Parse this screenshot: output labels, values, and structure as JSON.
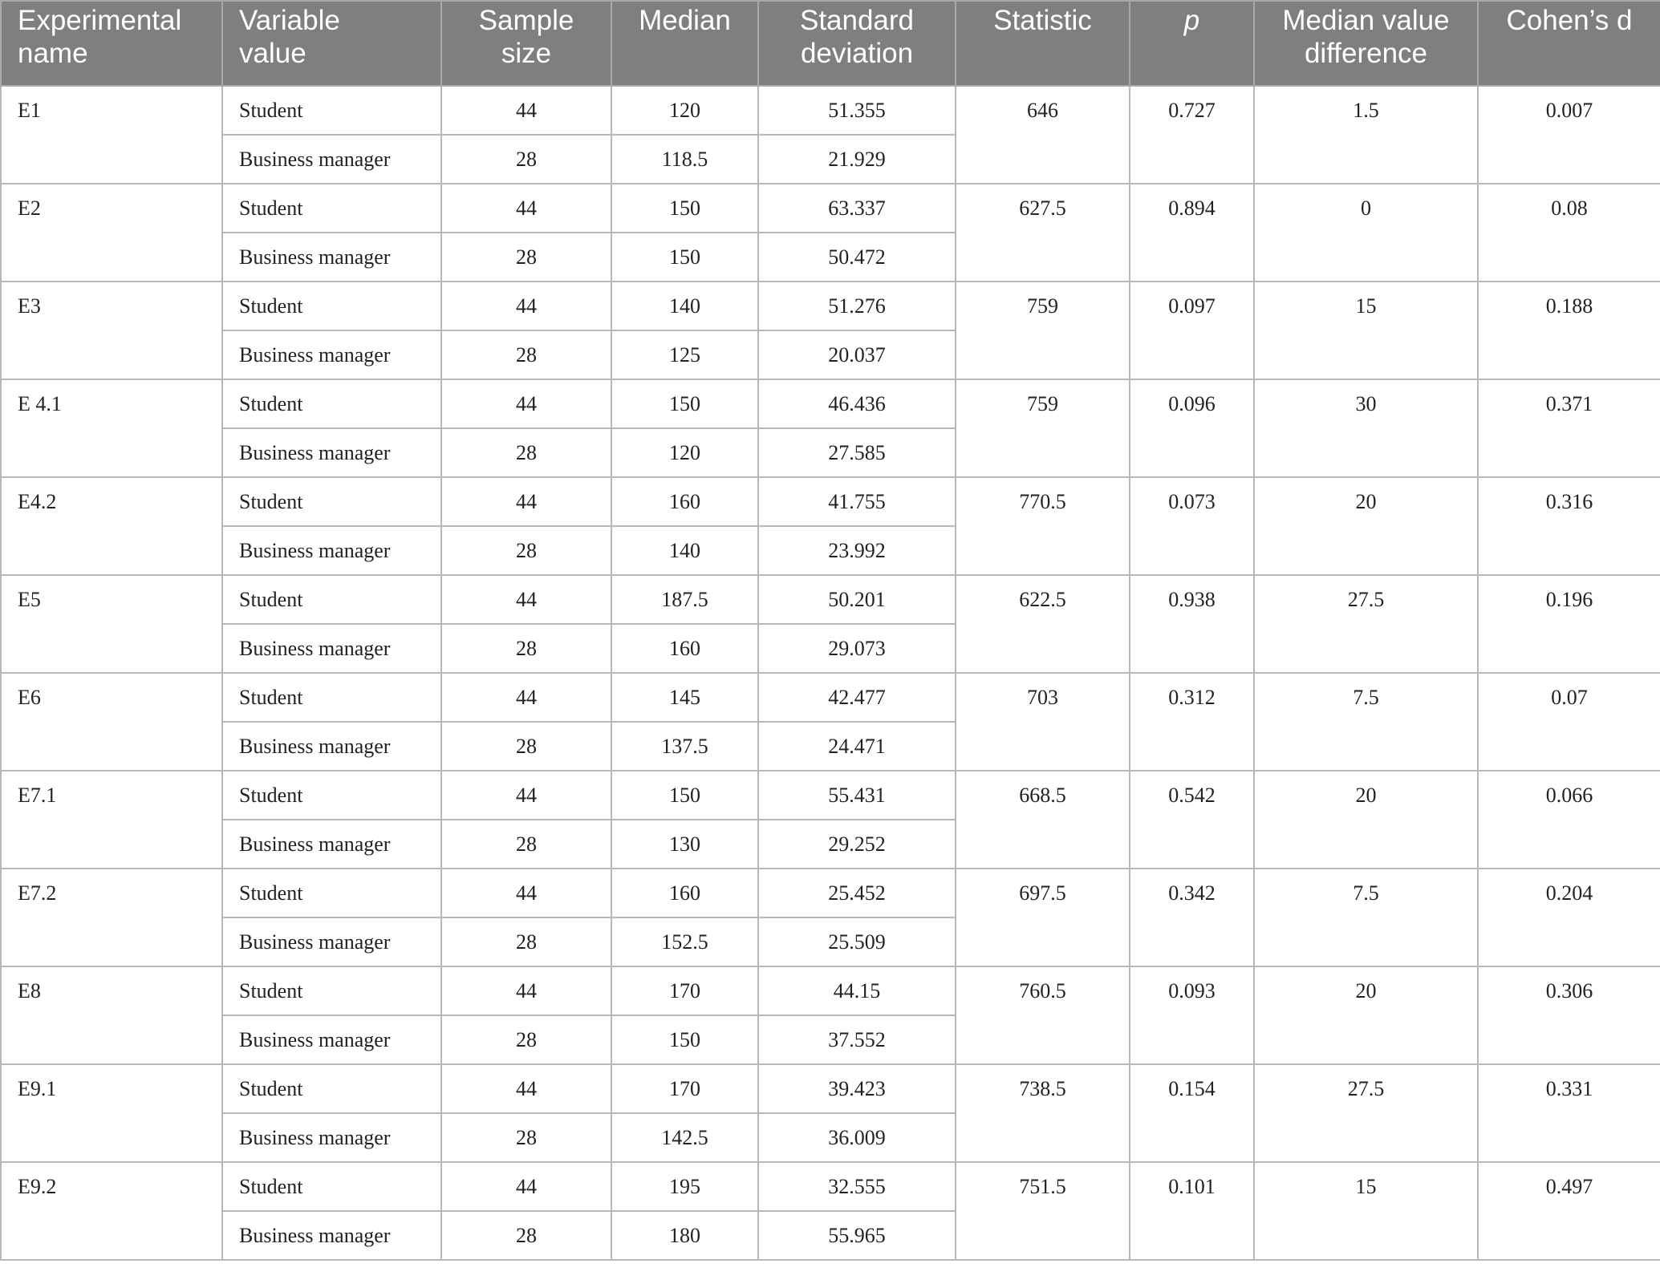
{
  "table": {
    "headers": [
      [
        "Experimental",
        "name"
      ],
      [
        "Variable",
        "value"
      ],
      [
        "Sample",
        "size"
      ],
      [
        "Median"
      ],
      [
        "Standard",
        "deviation"
      ],
      [
        "Statistic"
      ],
      [
        "p"
      ],
      [
        "Median value",
        "difference"
      ],
      [
        "Cohen’s d"
      ]
    ],
    "groups": [
      {
        "name": "E1",
        "statistic": "646",
        "p": "0.727",
        "median_diff": "1.5",
        "cohens_d": "0.007",
        "rows": [
          {
            "variable": "Student",
            "sample_size": "44",
            "median": "120",
            "sd": "51.355"
          },
          {
            "variable": "Business manager",
            "sample_size": "28",
            "median": "118.5",
            "sd": "21.929"
          }
        ]
      },
      {
        "name": "E2",
        "statistic": "627.5",
        "p": "0.894",
        "median_diff": "0",
        "cohens_d": "0.08",
        "rows": [
          {
            "variable": "Student",
            "sample_size": "44",
            "median": "150",
            "sd": "63.337"
          },
          {
            "variable": "Business manager",
            "sample_size": "28",
            "median": "150",
            "sd": "50.472"
          }
        ]
      },
      {
        "name": "E3",
        "statistic": "759",
        "p": "0.097",
        "median_diff": "15",
        "cohens_d": "0.188",
        "rows": [
          {
            "variable": "Student",
            "sample_size": "44",
            "median": "140",
            "sd": "51.276"
          },
          {
            "variable": "Business manager",
            "sample_size": "28",
            "median": "125",
            "sd": "20.037"
          }
        ]
      },
      {
        "name": "E 4.1",
        "statistic": "759",
        "p": "0.096",
        "median_diff": "30",
        "cohens_d": "0.371",
        "rows": [
          {
            "variable": "Student",
            "sample_size": "44",
            "median": "150",
            "sd": "46.436"
          },
          {
            "variable": "Business manager",
            "sample_size": "28",
            "median": "120",
            "sd": "27.585"
          }
        ]
      },
      {
        "name": "E4.2",
        "statistic": "770.5",
        "p": "0.073",
        "median_diff": "20",
        "cohens_d": "0.316",
        "rows": [
          {
            "variable": "Student",
            "sample_size": "44",
            "median": "160",
            "sd": "41.755"
          },
          {
            "variable": "Business manager",
            "sample_size": "28",
            "median": "140",
            "sd": "23.992"
          }
        ]
      },
      {
        "name": "E5",
        "statistic": "622.5",
        "p": "0.938",
        "median_diff": "27.5",
        "cohens_d": "0.196",
        "rows": [
          {
            "variable": "Student",
            "sample_size": "44",
            "median": "187.5",
            "sd": "50.201"
          },
          {
            "variable": "Business manager",
            "sample_size": "28",
            "median": "160",
            "sd": "29.073"
          }
        ]
      },
      {
        "name": "E6",
        "statistic": "703",
        "p": "0.312",
        "median_diff": "7.5",
        "cohens_d": "0.07",
        "rows": [
          {
            "variable": "Student",
            "sample_size": "44",
            "median": "145",
            "sd": "42.477"
          },
          {
            "variable": "Business manager",
            "sample_size": "28",
            "median": "137.5",
            "sd": "24.471"
          }
        ]
      },
      {
        "name": "E7.1",
        "statistic": "668.5",
        "p": "0.542",
        "median_diff": "20",
        "cohens_d": "0.066",
        "rows": [
          {
            "variable": "Student",
            "sample_size": "44",
            "median": "150",
            "sd": "55.431"
          },
          {
            "variable": "Business manager",
            "sample_size": "28",
            "median": "130",
            "sd": "29.252"
          }
        ]
      },
      {
        "name": "E7.2",
        "statistic": "697.5",
        "p": "0.342",
        "median_diff": "7.5",
        "cohens_d": "0.204",
        "rows": [
          {
            "variable": "Student",
            "sample_size": "44",
            "median": "160",
            "sd": "25.452"
          },
          {
            "variable": "Business manager",
            "sample_size": "28",
            "median": "152.5",
            "sd": "25.509"
          }
        ]
      },
      {
        "name": "E8",
        "statistic": "760.5",
        "p": "0.093",
        "median_diff": "20",
        "cohens_d": "0.306",
        "rows": [
          {
            "variable": "Student",
            "sample_size": "44",
            "median": "170",
            "sd": "44.15"
          },
          {
            "variable": "Business manager",
            "sample_size": "28",
            "median": "150",
            "sd": "37.552"
          }
        ]
      },
      {
        "name": "E9.1",
        "statistic": "738.5",
        "p": "0.154",
        "median_diff": "27.5",
        "cohens_d": "0.331",
        "rows": [
          {
            "variable": "Student",
            "sample_size": "44",
            "median": "170",
            "sd": "39.423"
          },
          {
            "variable": "Business manager",
            "sample_size": "28",
            "median": "142.5",
            "sd": "36.009"
          }
        ]
      },
      {
        "name": "E9.2",
        "statistic": "751.5",
        "p": "0.101",
        "median_diff": "15",
        "cohens_d": "0.497",
        "rows": [
          {
            "variable": "Student",
            "sample_size": "44",
            "median": "195",
            "sd": "32.555"
          },
          {
            "variable": "Business manager",
            "sample_size": "28",
            "median": "180",
            "sd": "55.965"
          }
        ]
      }
    ]
  }
}
